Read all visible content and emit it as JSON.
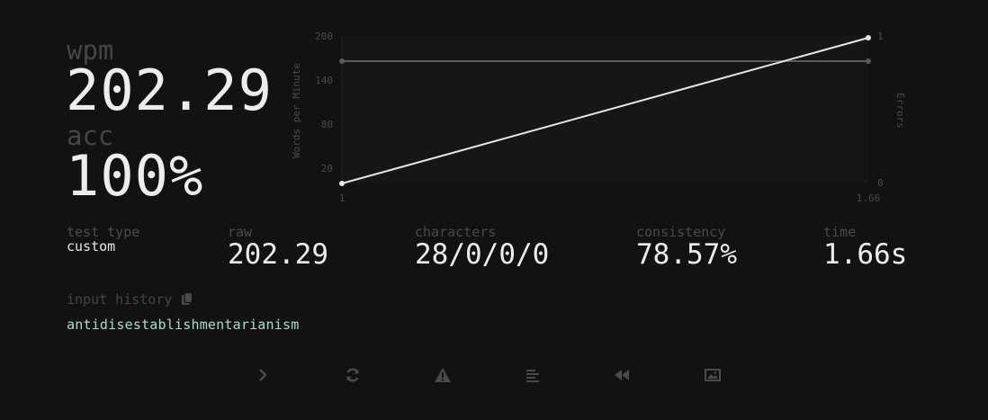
{
  "stats": {
    "wpm_label": "wpm",
    "wpm_value": "202.29",
    "acc_label": "acc",
    "acc_value": "100%"
  },
  "chart_data": {
    "type": "line",
    "ylabel": "Words per Minute",
    "y2label": "Errors",
    "y_ticks": [
      "200",
      "140",
      "80",
      "20"
    ],
    "y2_ticks": [
      "1",
      "0"
    ],
    "x_ticks": [
      "1",
      "1.66"
    ],
    "x": [
      1,
      1.66
    ],
    "series": [
      {
        "values": [
          0,
          200
        ],
        "color": "#e6e6e6",
        "axis": "left"
      },
      {
        "values": [
          1,
          1
        ],
        "color": "#5a5a5a",
        "axis": "right"
      }
    ]
  },
  "details": {
    "test_type_label": "test type",
    "test_type_value": "custom",
    "raw_label": "raw",
    "raw_value": "202.29",
    "characters_label": "characters",
    "characters_value": "28/0/0/0",
    "consistency_label": "consistency",
    "consistency_value": "78.57%",
    "time_label": "time",
    "time_value": "1.66s"
  },
  "history": {
    "label": "input history",
    "copy_icon": "copy-icon",
    "word": "antidisestablishmentarianism",
    "word_color": "#9fe0c8"
  },
  "actions": [
    {
      "icon": "chevron-right-icon"
    },
    {
      "icon": "refresh-icon"
    },
    {
      "icon": "warning-icon"
    },
    {
      "icon": "align-left-icon"
    },
    {
      "icon": "backward-icon"
    },
    {
      "icon": "image-icon"
    }
  ]
}
